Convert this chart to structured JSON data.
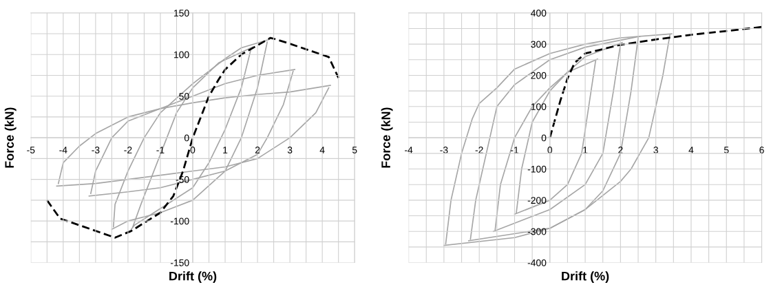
{
  "chart_data": [
    {
      "type": "line",
      "xlabel": "Drift (%)",
      "ylabel": "Force (kN)",
      "xlim": [
        -5,
        5
      ],
      "ylim": [
        -150,
        150
      ],
      "xticks": [
        -5,
        {
          "value": -4.5,
          "label": null
        },
        -4,
        {
          "value": -3.5,
          "label": null
        },
        -3,
        {
          "value": -2.5,
          "label": null
        },
        -2,
        {
          "value": -1.5,
          "label": null
        },
        -1,
        {
          "value": -0.5,
          "label": null
        },
        0,
        {
          "value": 0.5,
          "label": null
        },
        1,
        {
          "value": 1.5,
          "label": null
        },
        2,
        {
          "value": 2.5,
          "label": null
        },
        3,
        {
          "value": 3.5,
          "label": null
        },
        4,
        {
          "value": 4.5,
          "label": null
        },
        5
      ],
      "yticks": [
        -150,
        {
          "value": -125,
          "label": null
        },
        -100,
        {
          "value": -75,
          "label": null
        },
        -50,
        {
          "value": -25,
          "label": null
        },
        0,
        {
          "value": 25,
          "label": null
        },
        50,
        {
          "value": 75,
          "label": null
        },
        100,
        {
          "value": 125,
          "label": null
        },
        150
      ],
      "grid": true,
      "legend": false,
      "marker": "none",
      "series": [
        {
          "color": "#a6a6a6",
          "line_style": "solid",
          "x": [
            -1.9,
            -1.8,
            -1,
            0,
            0.5,
            1,
            1.5,
            1.8
          ],
          "values": [
            -110,
            -105,
            -85,
            -60,
            -30,
            10,
            60,
            107
          ]
        },
        {
          "color": "#a6a6a6",
          "line_style": "solid",
          "x": [
            -1.85,
            -1.6,
            -1,
            -0.5,
            0,
            0.8,
            1.85
          ],
          "values": [
            -107,
            -80,
            -20,
            30,
            60,
            90,
            109
          ]
        },
        {
          "color": "#a6a6a6",
          "line_style": "solid",
          "x": [
            -2.5,
            -2,
            -1,
            0,
            1,
            1.5,
            2,
            2.3
          ],
          "values": [
            -110,
            -100,
            -90,
            -75,
            -40,
            0,
            60,
            115
          ]
        },
        {
          "color": "#a6a6a6",
          "line_style": "solid",
          "x": [
            -2.45,
            -2.4,
            -2,
            -1.5,
            -1,
            0,
            1,
            1.5,
            2.35
          ],
          "values": [
            -107,
            -80,
            -40,
            0,
            30,
            65,
            95,
            108,
            118
          ]
        },
        {
          "color": "#a6a6a6",
          "line_style": "solid",
          "x": [
            -3.2,
            -2,
            -1,
            0,
            1,
            2,
            2.3,
            2.8,
            3.1
          ],
          "values": [
            -70,
            -65,
            -60,
            -50,
            -40,
            -20,
            0,
            40,
            80
          ]
        },
        {
          "color": "#a6a6a6",
          "line_style": "solid",
          "x": [
            -3.15,
            -3,
            -2.5,
            -2,
            -1,
            0,
            1,
            2,
            3.15
          ],
          "values": [
            -67,
            -40,
            0,
            20,
            35,
            50,
            65,
            75,
            82
          ]
        },
        {
          "color": "#a6a6a6",
          "line_style": "solid",
          "x": [
            -4.2,
            -3,
            -2,
            -1,
            0,
            1,
            2,
            3,
            3.8,
            4.2
          ],
          "values": [
            -58,
            -55,
            -50,
            -45,
            -40,
            -35,
            -25,
            0,
            30,
            60
          ]
        },
        {
          "color": "#a6a6a6",
          "line_style": "solid",
          "x": [
            -4.15,
            -4,
            -3.5,
            -3,
            -2,
            -1,
            0,
            1,
            2,
            3,
            4.25
          ],
          "values": [
            -55,
            -30,
            -10,
            5,
            25,
            35,
            42,
            48,
            52,
            55,
            63
          ]
        },
        {
          "color": "#000000",
          "line_style": "dashed",
          "x": [
            -4.5,
            -4.1,
            -2.4,
            -1.9,
            -1,
            -0.6,
            -0.3,
            0,
            0.3,
            0.5,
            0.8,
            1,
            1.5,
            2.4,
            2.5,
            3,
            4.2,
            4.5
          ],
          "values": [
            -75,
            -97,
            -120,
            -112,
            -90,
            -70,
            -40,
            0,
            30,
            50,
            70,
            82,
            100,
            120,
            119,
            113,
            97,
            72
          ]
        }
      ]
    },
    {
      "type": "line",
      "xlabel": "Drift (%)",
      "ylabel": "Force (kN)",
      "xlim": [
        -4,
        6
      ],
      "ylim": [
        -400,
        400
      ],
      "xticks": [
        -4,
        {
          "value": -3.5,
          "label": null
        },
        -3,
        {
          "value": -2.5,
          "label": null
        },
        -2,
        {
          "value": -1.5,
          "label": null
        },
        -1,
        {
          "value": -0.5,
          "label": null
        },
        0,
        {
          "value": 0.5,
          "label": null
        },
        1,
        {
          "value": 1.5,
          "label": null
        },
        2,
        {
          "value": 2.5,
          "label": null
        },
        3,
        {
          "value": 3.5,
          "label": null
        },
        4,
        {
          "value": 4.5,
          "label": null
        },
        5,
        {
          "value": 5.5,
          "label": null
        },
        6
      ],
      "yticks": [
        -400,
        {
          "value": -350,
          "label": null
        },
        -300,
        {
          "value": -250,
          "label": null
        },
        -200,
        {
          "value": -150,
          "label": null
        },
        -100,
        {
          "value": -50,
          "label": null
        },
        0,
        {
          "value": 50,
          "label": null
        },
        100,
        {
          "value": 150,
          "label": null
        },
        200,
        {
          "value": 250,
          "label": null
        },
        300,
        {
          "value": 350,
          "label": null
        },
        400
      ],
      "grid": true,
      "legend": false,
      "marker": "none",
      "series": [
        {
          "color": "#a6a6a6",
          "line_style": "solid",
          "x": [
            -1,
            0,
            0.5,
            0.9,
            1.1,
            1.3
          ],
          "values": [
            -245,
            -200,
            -150,
            -50,
            100,
            250
          ]
        },
        {
          "color": "#a6a6a6",
          "line_style": "solid",
          "x": [
            -0.95,
            -0.8,
            -0.5,
            0,
            0.5,
            1.35
          ],
          "values": [
            -240,
            -100,
            50,
            150,
            210,
            252
          ]
        },
        {
          "color": "#a6a6a6",
          "line_style": "solid",
          "x": [
            -1.6,
            0,
            1,
            1.5,
            1.8,
            2
          ],
          "values": [
            -300,
            -230,
            -150,
            -50,
            150,
            300
          ]
        },
        {
          "color": "#a6a6a6",
          "line_style": "solid",
          "x": [
            -1.55,
            -1.4,
            -1,
            -0.5,
            0,
            1,
            2.05
          ],
          "values": [
            -295,
            -150,
            0,
            100,
            160,
            260,
            305
          ]
        },
        {
          "color": "#a6a6a6",
          "line_style": "solid",
          "x": [
            -2.3,
            0,
            1,
            1.5,
            2,
            2.3,
            2.5
          ],
          "values": [
            -330,
            -290,
            -230,
            -170,
            -50,
            150,
            320
          ]
        },
        {
          "color": "#a6a6a6",
          "line_style": "solid",
          "x": [
            -2.25,
            -2.1,
            -1.8,
            -1.5,
            -1,
            0,
            1,
            2.55
          ],
          "values": [
            -325,
            -200,
            -50,
            100,
            170,
            250,
            290,
            325
          ]
        },
        {
          "color": "#a6a6a6",
          "line_style": "solid",
          "x": [
            -3,
            -1,
            0,
            1,
            2,
            2.3,
            2.8,
            3.2,
            3.4
          ],
          "values": [
            -345,
            -320,
            -290,
            -230,
            -140,
            -100,
            0,
            200,
            330
          ]
        },
        {
          "color": "#a6a6a6",
          "line_style": "solid",
          "x": [
            -2.95,
            -2.8,
            -2.5,
            -2.2,
            -2,
            -1.5,
            -1,
            0,
            1,
            2,
            3.45
          ],
          "values": [
            -340,
            -200,
            -50,
            60,
            110,
            160,
            220,
            270,
            300,
            320,
            333
          ]
        },
        {
          "color": "#000000",
          "line_style": "dashed",
          "x": [
            0,
            0.3,
            0.5,
            0.7,
            1,
            2,
            3,
            4,
            5,
            6
          ],
          "values": [
            0,
            120,
            190,
            240,
            270,
            298,
            315,
            330,
            342,
            355
          ]
        }
      ]
    }
  ]
}
